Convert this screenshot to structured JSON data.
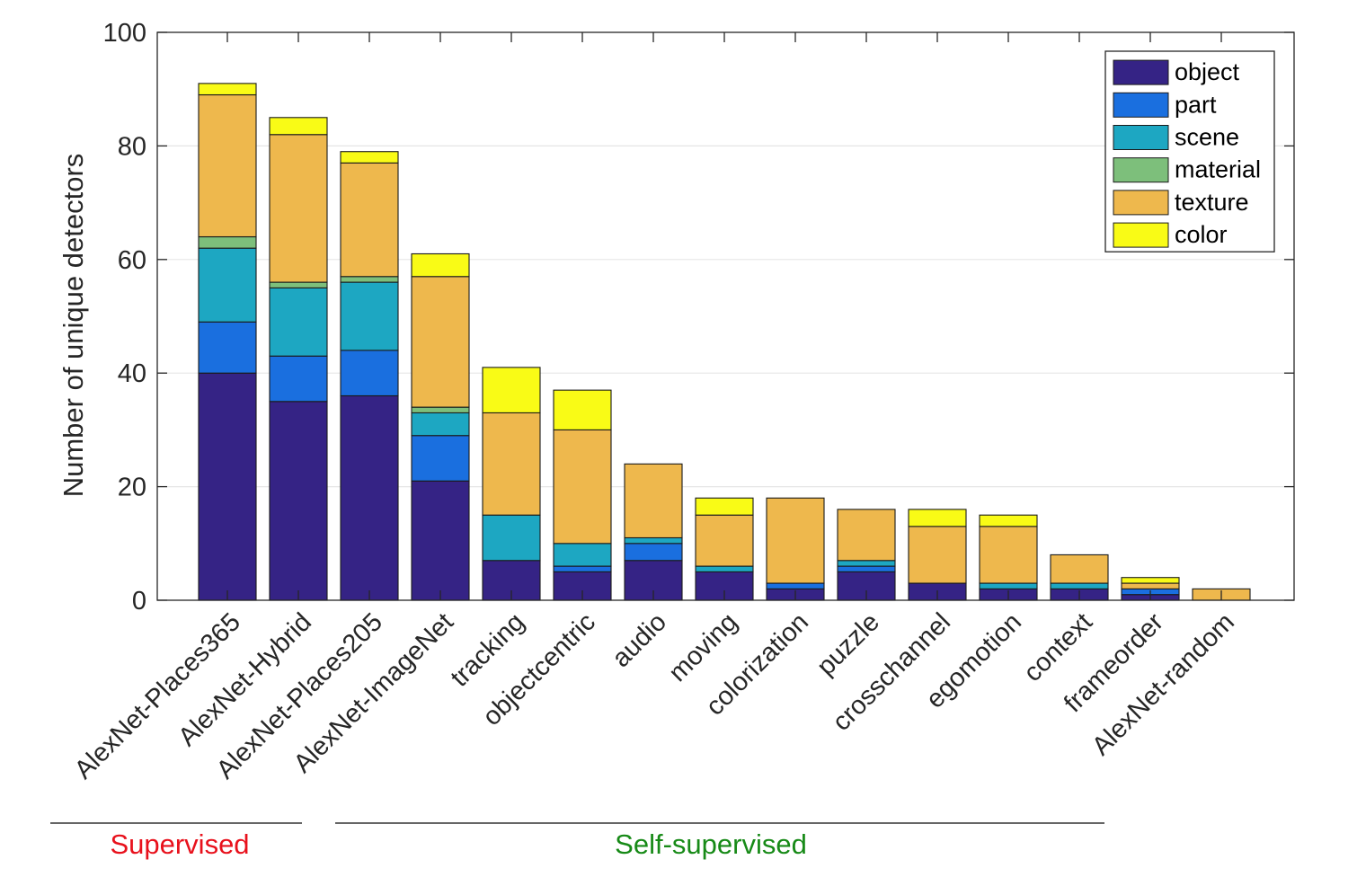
{
  "chart_data": {
    "type": "bar",
    "stacked": true,
    "ylabel": "Number of unique detectors",
    "xlabel": "",
    "ylim": [
      0,
      100
    ],
    "yticks": [
      0,
      20,
      40,
      60,
      80,
      100
    ],
    "grid": "horizontal",
    "legend_position": "top-right",
    "categories": [
      "AlexNet-Places365",
      "AlexNet-Hybrid",
      "AlexNet-Places205",
      "AlexNet-ImageNet",
      "tracking",
      "objectcentric",
      "audio",
      "moving",
      "colorization",
      "puzzle",
      "crosschannel",
      "egomotion",
      "context",
      "frameorder",
      "AlexNet-random"
    ],
    "series": [
      {
        "name": "object",
        "color": "#352385",
        "values": [
          40,
          35,
          36,
          21,
          7,
          5,
          7,
          5,
          2,
          5,
          3,
          2,
          2,
          1,
          0
        ]
      },
      {
        "name": "part",
        "color": "#1a6fdf",
        "values": [
          9,
          8,
          8,
          8,
          0,
          1,
          3,
          0,
          1,
          1,
          0,
          0,
          0,
          1,
          0
        ]
      },
      {
        "name": "scene",
        "color": "#1da7c2",
        "values": [
          13,
          12,
          12,
          4,
          8,
          4,
          1,
          1,
          0,
          1,
          0,
          1,
          1,
          0,
          0
        ]
      },
      {
        "name": "material",
        "color": "#7dbf7b",
        "values": [
          2,
          1,
          1,
          1,
          0,
          0,
          0,
          0,
          0,
          0,
          0,
          0,
          0,
          0,
          0
        ]
      },
      {
        "name": "texture",
        "color": "#eeb84d",
        "values": [
          25,
          26,
          20,
          23,
          18,
          20,
          13,
          9,
          15,
          9,
          10,
          10,
          5,
          1,
          2
        ]
      },
      {
        "name": "color",
        "color": "#f9fb16",
        "values": [
          2,
          3,
          2,
          4,
          8,
          7,
          0,
          3,
          0,
          0,
          3,
          2,
          0,
          1,
          0
        ]
      }
    ],
    "groups": [
      {
        "label": "Supervised",
        "color": "#e8111c",
        "first_index": 0,
        "last_index": 3
      },
      {
        "label": "Self-supervised",
        "color": "#178a17",
        "first_index": 4,
        "last_index": 14
      }
    ]
  }
}
